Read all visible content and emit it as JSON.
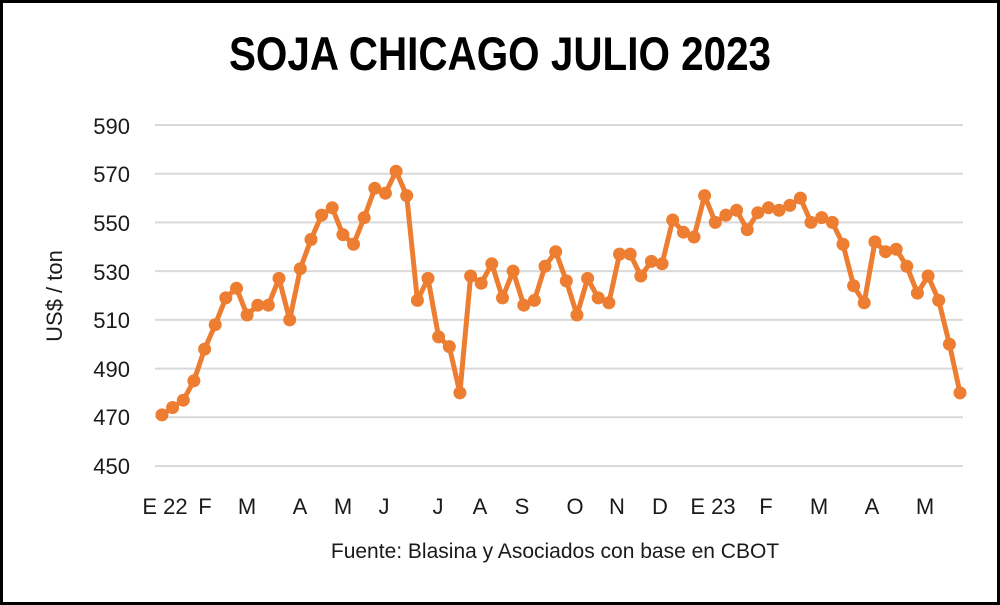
{
  "title": "SOJA CHICAGO JULIO 2023",
  "source": "Fuente: Blasina y Asociados con base en CBOT",
  "colors": {
    "line": "#ED7D31",
    "grid": "#D9D9D9",
    "text": "#1a1a1a",
    "border": "#000000"
  },
  "y_axis": {
    "label": "US$ / ton",
    "ticks": [
      "590",
      "570",
      "550",
      "530",
      "510",
      "490",
      "470",
      "450"
    ]
  },
  "x_axis": {
    "ticks": [
      "E 22",
      "F",
      "M",
      "A",
      "M",
      "J",
      "J",
      "A",
      "S",
      "O",
      "N",
      "D",
      "E 23",
      "F",
      "M",
      "A",
      "M"
    ]
  },
  "chart_data": {
    "type": "line",
    "title": "SOJA CHICAGO JULIO 2023",
    "xlabel": "",
    "ylabel": "US$ / ton",
    "ylim": [
      450,
      590
    ],
    "yticks": [
      450,
      470,
      490,
      510,
      530,
      550,
      570,
      590
    ],
    "grid": true,
    "legend": null,
    "annotation": "Fuente: Blasina y Asociados con base en CBOT",
    "month_labels": [
      "E 22",
      "F",
      "M",
      "A",
      "M",
      "J",
      "J",
      "A",
      "S",
      "O",
      "N",
      "D",
      "E 23",
      "F",
      "M",
      "A",
      "M"
    ],
    "series": [
      {
        "name": "Soja Chicago julio 2023",
        "color": "#ED7D31",
        "values": [
          471,
          474,
          477,
          485,
          498,
          508,
          519,
          523,
          512,
          516,
          516,
          527,
          510,
          531,
          543,
          553,
          556,
          545,
          541,
          552,
          564,
          562,
          571,
          561,
          518,
          527,
          503,
          499,
          480,
          528,
          525,
          533,
          519,
          530,
          516,
          518,
          532,
          538,
          526,
          512,
          527,
          519,
          517,
          537,
          537,
          528,
          534,
          533,
          551,
          546,
          544,
          561,
          550,
          553,
          555,
          547,
          554,
          556,
          555,
          557,
          560,
          550,
          552,
          550,
          541,
          524,
          517,
          542,
          538,
          539,
          532,
          521,
          528,
          518,
          500,
          480
        ]
      }
    ]
  }
}
